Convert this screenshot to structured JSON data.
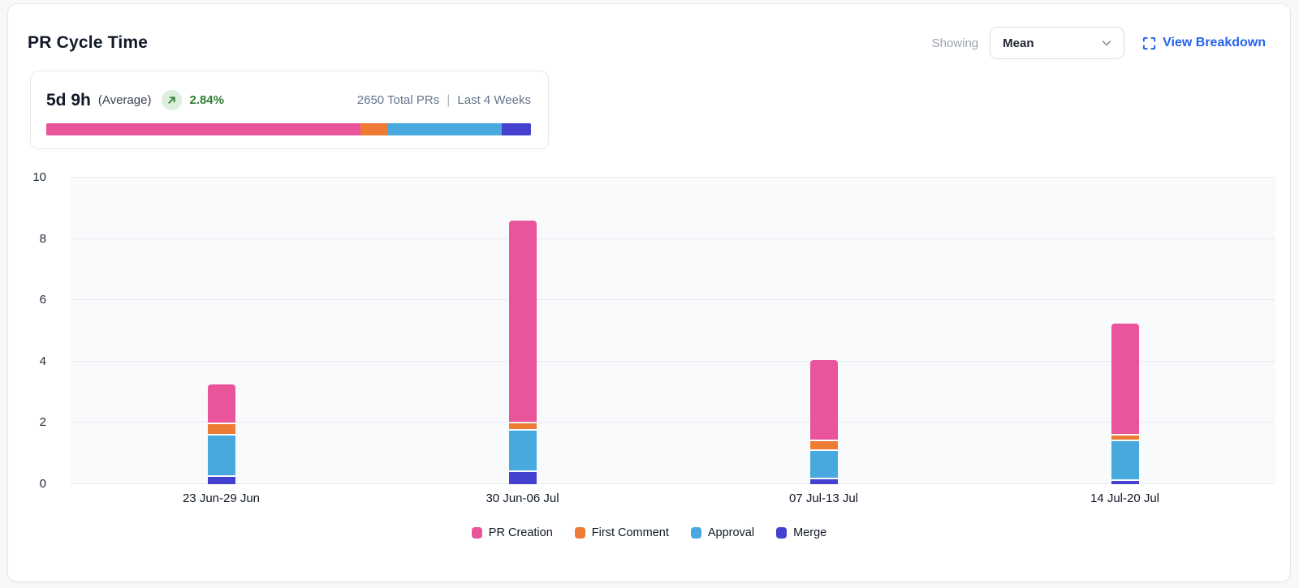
{
  "header": {
    "title": "PR Cycle Time",
    "showing_label": "Showing",
    "metric_dropdown": {
      "value": "Mean"
    },
    "view_breakdown_label": "View Breakdown"
  },
  "summary": {
    "value": "5d 9h",
    "value_qualifier": "(Average)",
    "trend_percent": "2.84%",
    "trend_direction": "up",
    "total_prs": "2650 Total PRs",
    "period": "Last 4 Weeks",
    "distribution": [
      {
        "label": "PR Creation",
        "percent": 64.9,
        "color": "#e9549b"
      },
      {
        "label": "First Comment",
        "percent": 5.7,
        "color": "#ee7b33"
      },
      {
        "label": "Approval",
        "percent": 23.4,
        "color": "#47a9de"
      },
      {
        "label": "Merge",
        "percent": 6.0,
        "color": "#4441ce"
      }
    ]
  },
  "chart_data": {
    "type": "bar",
    "stacked": true,
    "title": "PR Cycle Time",
    "xlabel": "",
    "ylabel": "",
    "categories": [
      "23 Jun-29 Jun",
      "30 Jun-06 Jul",
      "07 Jul-13 Jul",
      "14 Jul-20 Jul"
    ],
    "series": [
      {
        "name": "PR Creation",
        "color": "#e9549b",
        "values": [
          1.3,
          6.6,
          2.65,
          3.65
        ]
      },
      {
        "name": "First Comment",
        "color": "#ee7b33",
        "values": [
          0.35,
          0.25,
          0.3,
          0.2
        ]
      },
      {
        "name": "Approval",
        "color": "#47a9de",
        "values": [
          1.35,
          1.35,
          0.95,
          1.3
        ]
      },
      {
        "name": "Merge",
        "color": "#4441ce",
        "values": [
          0.3,
          0.45,
          0.2,
          0.15
        ]
      }
    ],
    "totals": [
      3.3,
      8.65,
      4.1,
      5.3
    ],
    "stack_order_bottom_to_top": [
      "Merge",
      "Approval",
      "First Comment",
      "PR Creation"
    ],
    "ylim": [
      0,
      10
    ],
    "yticks": [
      0,
      2,
      4,
      6,
      8,
      10
    ],
    "grid": true,
    "legend_position": "bottom"
  },
  "colors": {
    "accent_blue": "#2563eb",
    "trend_green": "#2e7d32",
    "trend_badge_bg": "#dceedc",
    "plot_bg": "#f8fafc",
    "gridline": "#e8eaee",
    "card_border": "#e5e7eb"
  }
}
